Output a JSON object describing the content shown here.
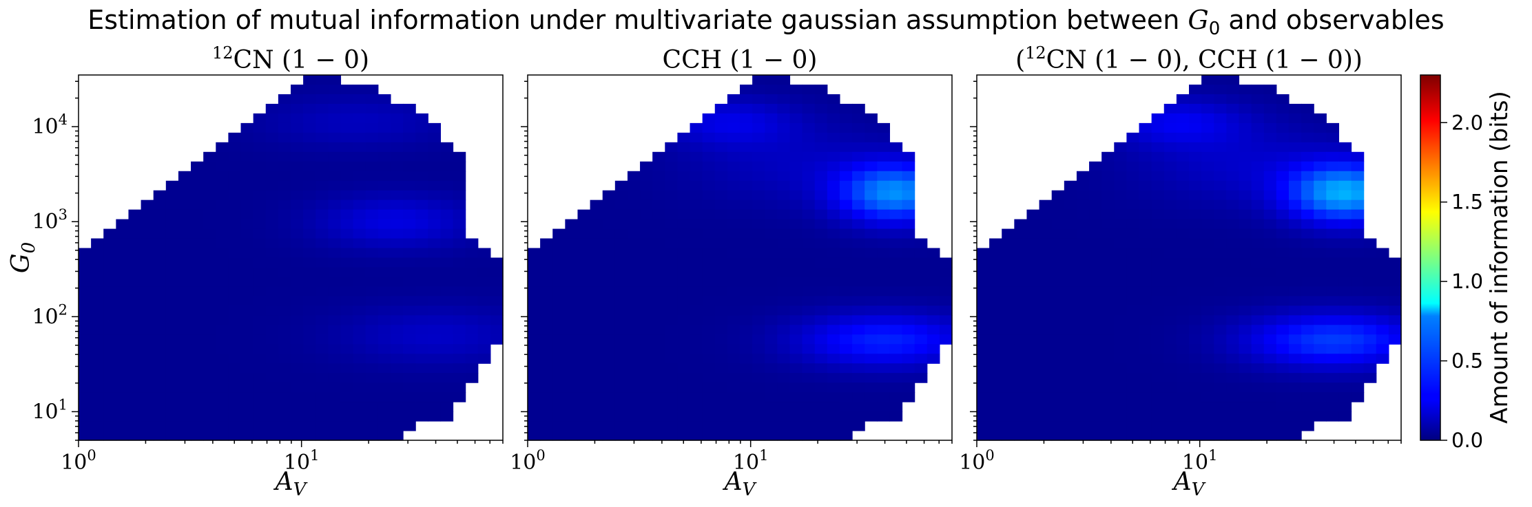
{
  "figure": {
    "title": "Estimation of mutual information under multivariate gaussian assumption between G0 and observables"
  },
  "colorbar": {
    "label": "Amount of information (bits)",
    "range": [
      0.0,
      2.3
    ],
    "ticks": [
      "0.0",
      "0.5",
      "1.0",
      "1.5",
      "2.0"
    ],
    "colormap": "jet"
  },
  "chart_data": [
    {
      "type": "heatmap",
      "title": "12CN (1 − 0)",
      "xlabel": "AV",
      "ylabel": "G0",
      "xscale": "log",
      "yscale": "log",
      "xlim": [
        1,
        80
      ],
      "ylim": [
        5,
        35000
      ],
      "xticks": [
        "10^0",
        "10^1"
      ],
      "yticks": [
        "10^1",
        "10^2",
        "10^3",
        "10^4"
      ],
      "grid": false,
      "hotspots": [
        {
          "AV": 27,
          "G0": 1000,
          "info_bits": 0.22
        },
        {
          "AV": 18,
          "G0": 10000,
          "info_bits": 0.15
        },
        {
          "AV": 35,
          "G0": 60,
          "info_bits": 0.2
        }
      ]
    },
    {
      "type": "heatmap",
      "title": "CCH (1 − 0)",
      "xlabel": "AV",
      "xscale": "log",
      "yscale": "log",
      "xlim": [
        1,
        80
      ],
      "ylim": [
        5,
        35000
      ],
      "xticks": [
        "10^0",
        "10^1"
      ],
      "grid": false,
      "hotspots": [
        {
          "AV": 45,
          "G0": 2000,
          "info_bits": 0.65
        },
        {
          "AV": 40,
          "G0": 50,
          "info_bits": 0.4
        },
        {
          "AV": 8,
          "G0": 12000,
          "info_bits": 0.22
        }
      ]
    },
    {
      "type": "heatmap",
      "title": "(12CN (1 − 0), CCH (1 − 0))",
      "xlabel": "AV",
      "xscale": "log",
      "yscale": "log",
      "xlim": [
        1,
        80
      ],
      "ylim": [
        5,
        35000
      ],
      "xticks": [
        "10^0",
        "10^1"
      ],
      "grid": false,
      "hotspots": [
        {
          "AV": 45,
          "G0": 2000,
          "info_bits": 0.7
        },
        {
          "AV": 40,
          "G0": 50,
          "info_bits": 0.45
        },
        {
          "AV": 8,
          "G0": 12000,
          "info_bits": 0.25
        }
      ]
    }
  ],
  "colors": {
    "low": "#00007f",
    "mid_low": "#0000ff",
    "mid": "#00ffff",
    "mid_high": "#ffff00",
    "high": "#7f0000"
  }
}
